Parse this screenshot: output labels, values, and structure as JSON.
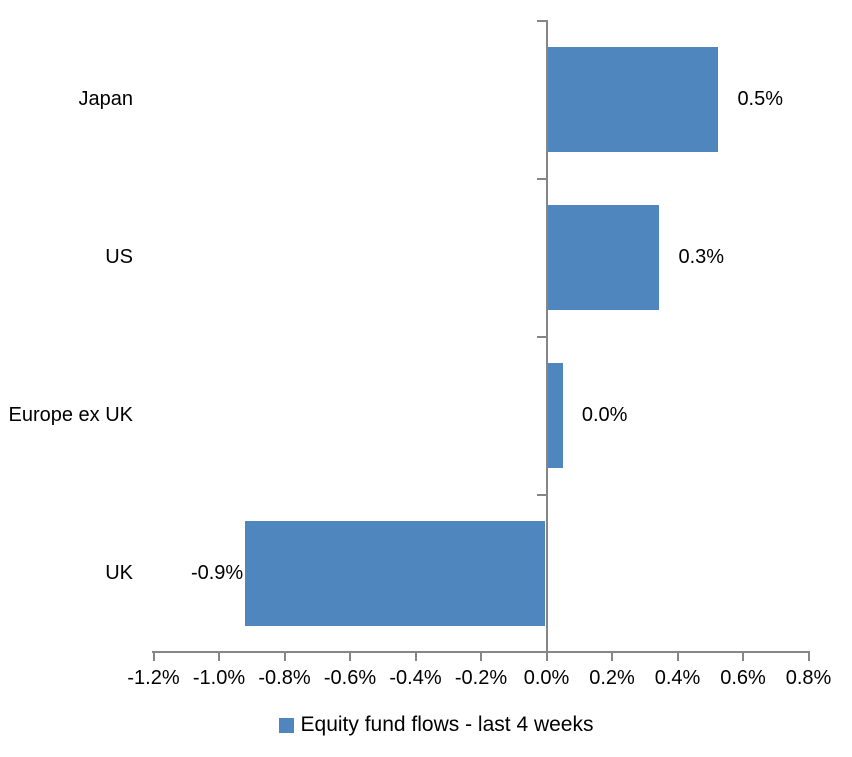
{
  "chart_data": {
    "type": "bar",
    "orientation": "horizontal",
    "title": "",
    "xlabel": "",
    "ylabel": "",
    "categories": [
      "Japan",
      "US",
      "Europe ex UK",
      "UK"
    ],
    "series": [
      {
        "name": "Equity fund flows - last 4 weeks",
        "values": [
          0.5,
          0.3,
          0.0,
          -0.9
        ],
        "data_labels": [
          "0.5%",
          "0.3%",
          "0.0%",
          "-0.9%"
        ],
        "bar_extents_pct": [
          0.525,
          0.345,
          0.05,
          -0.92
        ]
      }
    ],
    "xlim": [
      -1.2,
      0.8
    ],
    "x_ticks": [
      -1.2,
      -1.0,
      -0.8,
      -0.6,
      -0.4,
      -0.2,
      0.0,
      0.2,
      0.4,
      0.6,
      0.8
    ],
    "x_tick_labels": [
      "-1.2%",
      "-1.0%",
      "-0.8%",
      "-0.6%",
      "-0.4%",
      "-0.2%",
      "0.0%",
      "0.2%",
      "0.4%",
      "0.6%",
      "0.8%"
    ],
    "grid": false,
    "legend": {
      "position": "bottom",
      "entries": [
        "Equity fund flows - last 4 weeks"
      ]
    },
    "colors": {
      "bar": "#4E86BD",
      "axis": "#868686",
      "text": "#000000"
    }
  }
}
